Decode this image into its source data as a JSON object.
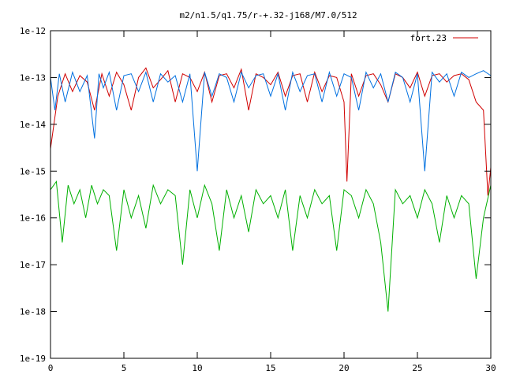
{
  "chart_data": {
    "type": "line",
    "title": "m2/n1.5/q1.75/r-+.32-j168/M7.0/512",
    "xlabel": "",
    "ylabel": "",
    "xlim": [
      0,
      30
    ],
    "ylim": [
      1e-19,
      1e-12
    ],
    "y_scale": "log",
    "grid": false,
    "legend_position": "top-right",
    "x_ticks": [
      "0",
      "5",
      "10",
      "15",
      "20",
      "25",
      "30"
    ],
    "y_ticks": [
      "1e-19",
      "1e-18",
      "1e-17",
      "1e-16",
      "1e-15",
      "1e-14",
      "1e-13",
      "1e-12"
    ],
    "series": [
      {
        "name": "fort.23",
        "color": "#d00000",
        "x": [
          0,
          0.5,
          1.0,
          1.5,
          2.0,
          2.5,
          3.0,
          3.5,
          4.0,
          4.5,
          5.0,
          5.5,
          6.0,
          6.5,
          7.0,
          7.5,
          8.0,
          8.5,
          9.0,
          9.5,
          10.0,
          10.5,
          11.0,
          11.5,
          12.0,
          12.5,
          13.0,
          13.5,
          14.0,
          14.5,
          15.0,
          15.5,
          16.0,
          16.5,
          17.0,
          17.5,
          18.0,
          18.5,
          19.0,
          19.5,
          20.0,
          20.2,
          20.5,
          21.0,
          21.5,
          22.0,
          22.5,
          23.0,
          23.5,
          24.0,
          24.5,
          25.0,
          25.5,
          26.0,
          26.5,
          27.0,
          27.5,
          28.0,
          28.5,
          29.0,
          29.5,
          29.8,
          30.0
        ],
        "y": [
          3e-15,
          4e-14,
          1.2e-13,
          5e-14,
          1.1e-13,
          8e-14,
          2e-14,
          1.2e-13,
          4e-14,
          1.3e-13,
          7e-14,
          2e-14,
          1e-13,
          1.6e-13,
          6e-14,
          9e-14,
          1.4e-13,
          3e-14,
          1.2e-13,
          1e-13,
          5e-14,
          1.3e-13,
          3e-14,
          1.1e-13,
          1.2e-13,
          6e-14,
          1.5e-13,
          2e-14,
          1.2e-13,
          1e-13,
          7e-14,
          1.3e-13,
          4e-14,
          1.1e-13,
          1.2e-13,
          3e-14,
          1.3e-13,
          5e-14,
          1.1e-13,
          1e-13,
          3e-14,
          6e-16,
          1.2e-13,
          4e-14,
          1.1e-13,
          1.2e-13,
          7e-14,
          3e-14,
          1.2e-13,
          1e-13,
          6e-14,
          1.3e-13,
          4e-14,
          1.1e-13,
          1.2e-13,
          8e-14,
          1.1e-13,
          1.2e-13,
          9e-14,
          3e-14,
          2e-14,
          3e-16,
          1.2e-15
        ]
      },
      {
        "name": "",
        "color": "#0070e0",
        "x": [
          0,
          0.3,
          0.6,
          1.0,
          1.5,
          2.0,
          2.5,
          3.0,
          3.3,
          3.6,
          4.0,
          4.5,
          5.0,
          5.5,
          6.0,
          6.5,
          7.0,
          7.5,
          8.0,
          8.5,
          9.0,
          9.5,
          10.0,
          10.5,
          11.0,
          11.5,
          12.0,
          12.5,
          13.0,
          13.5,
          14.0,
          14.5,
          15.0,
          15.5,
          16.0,
          16.5,
          17.0,
          17.5,
          18.0,
          18.5,
          19.0,
          19.5,
          20.0,
          20.5,
          21.0,
          21.5,
          22.0,
          22.5,
          23.0,
          23.5,
          24.0,
          24.5,
          25.0,
          25.5,
          26.0,
          26.5,
          27.0,
          27.5,
          28.0,
          28.5,
          29.0,
          29.5,
          30.0
        ],
        "y": [
          1e-13,
          2e-14,
          1.2e-13,
          3e-14,
          1.3e-13,
          5e-14,
          1.1e-13,
          5e-15,
          1.2e-13,
          6e-14,
          1.3e-13,
          2e-14,
          1.1e-13,
          1.2e-13,
          5e-14,
          1.3e-13,
          3e-14,
          1.2e-13,
          8e-14,
          1.1e-13,
          3e-14,
          1.2e-13,
          1e-15,
          1.3e-13,
          4e-14,
          1.2e-13,
          1e-13,
          3e-14,
          1.3e-13,
          6e-14,
          1.1e-13,
          1.2e-13,
          4e-14,
          1.2e-13,
          2e-14,
          1.3e-13,
          5e-14,
          1.1e-13,
          1.2e-13,
          3e-14,
          1.3e-13,
          4e-14,
          1.2e-13,
          1e-13,
          2e-14,
          1.3e-13,
          6e-14,
          1.2e-13,
          3e-14,
          1.3e-13,
          1e-13,
          3e-14,
          1.2e-13,
          1e-15,
          1.3e-13,
          8e-14,
          1.2e-13,
          4e-14,
          1.3e-13,
          1e-13,
          1.2e-13,
          1.4e-13,
          1.1e-13
        ]
      },
      {
        "name": "",
        "color": "#00b000",
        "x": [
          0,
          0.4,
          0.8,
          1.2,
          1.6,
          2.0,
          2.4,
          2.8,
          3.2,
          3.6,
          4.0,
          4.5,
          5.0,
          5.5,
          6.0,
          6.5,
          7.0,
          7.5,
          8.0,
          8.5,
          9.0,
          9.5,
          10.0,
          10.5,
          11.0,
          11.5,
          12.0,
          12.5,
          13.0,
          13.5,
          14.0,
          14.5,
          15.0,
          15.5,
          16.0,
          16.5,
          17.0,
          17.5,
          18.0,
          18.5,
          19.0,
          19.5,
          20.0,
          20.5,
          21.0,
          21.5,
          22.0,
          22.5,
          23.0,
          23.5,
          24.0,
          24.5,
          25.0,
          25.5,
          26.0,
          26.5,
          27.0,
          27.5,
          28.0,
          28.5,
          29.0,
          29.5,
          30.0
        ],
        "y": [
          4e-16,
          6e-16,
          3e-17,
          5e-16,
          2e-16,
          4e-16,
          1e-16,
          5e-16,
          2e-16,
          4e-16,
          3e-16,
          2e-17,
          4e-16,
          1e-16,
          3e-16,
          6e-17,
          5e-16,
          2e-16,
          4e-16,
          3e-16,
          1e-17,
          4e-16,
          1e-16,
          5e-16,
          2e-16,
          2e-17,
          4e-16,
          1e-16,
          3e-16,
          5e-17,
          4e-16,
          2e-16,
          3e-16,
          1e-16,
          4e-16,
          2e-17,
          3e-16,
          1e-16,
          4e-16,
          2e-16,
          3e-16,
          2e-17,
          4e-16,
          3e-16,
          1e-16,
          4e-16,
          2e-16,
          3e-17,
          1e-18,
          4e-16,
          2e-16,
          3e-16,
          1e-16,
          4e-16,
          2e-16,
          3e-17,
          3e-16,
          1e-16,
          3e-16,
          2e-16,
          5e-18,
          1e-16,
          5e-16
        ]
      }
    ]
  }
}
